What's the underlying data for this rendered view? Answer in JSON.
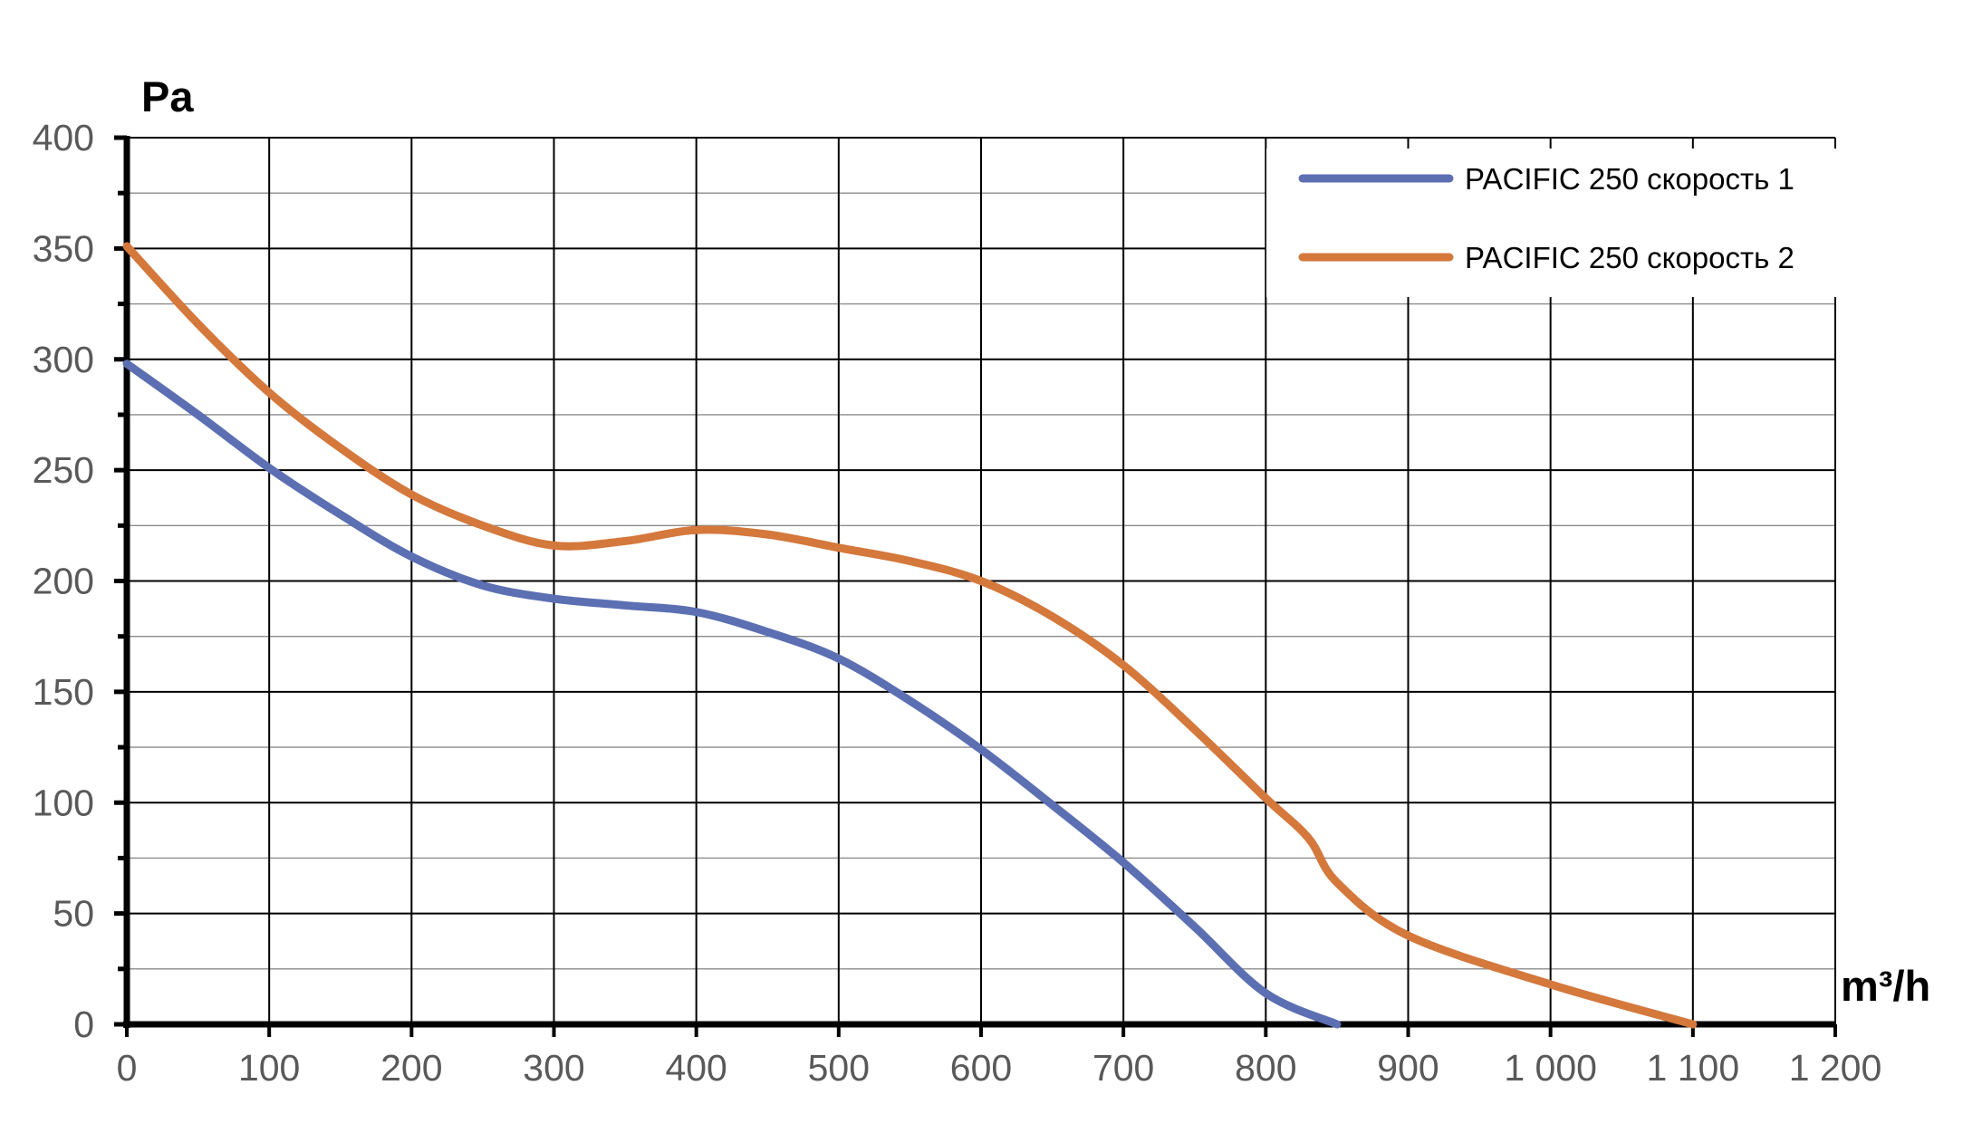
{
  "chart_data": {
    "type": "line",
    "title": "",
    "xlabel": "m³/h",
    "ylabel": "Pa",
    "xlim": [
      0,
      1200
    ],
    "ylim": [
      0,
      400
    ],
    "x_ticks": [
      0,
      100,
      200,
      300,
      400,
      500,
      600,
      700,
      800,
      900,
      1000,
      1100,
      1200
    ],
    "x_tick_labels": [
      "0",
      "100",
      "200",
      "300",
      "400",
      "500",
      "600",
      "700",
      "800",
      "900",
      "1 000",
      "1 100",
      "1 200"
    ],
    "y_ticks": [
      0,
      50,
      100,
      150,
      200,
      250,
      300,
      350,
      400
    ],
    "y_tick_labels": [
      "0",
      "50",
      "100",
      "150",
      "200",
      "250",
      "300",
      "350",
      "400"
    ],
    "grid": true,
    "legend_position": "top-right",
    "series": [
      {
        "name": "PACIFIC  250 скорость  1",
        "color": "#5b6fb2",
        "points": [
          [
            0,
            298
          ],
          [
            50,
            275
          ],
          [
            100,
            251
          ],
          [
            150,
            230
          ],
          [
            200,
            211
          ],
          [
            250,
            198
          ],
          [
            300,
            192
          ],
          [
            350,
            189
          ],
          [
            400,
            186
          ],
          [
            450,
            177
          ],
          [
            500,
            165
          ],
          [
            550,
            146
          ],
          [
            600,
            124
          ],
          [
            650,
            99
          ],
          [
            700,
            73
          ],
          [
            750,
            44
          ],
          [
            800,
            14
          ],
          [
            850,
            0
          ]
        ]
      },
      {
        "name": "PACIFIC  250 скорость  2",
        "color": "#d4783c",
        "points": [
          [
            0,
            351
          ],
          [
            50,
            316
          ],
          [
            100,
            285
          ],
          [
            150,
            260
          ],
          [
            200,
            239
          ],
          [
            250,
            225
          ],
          [
            300,
            216
          ],
          [
            350,
            218
          ],
          [
            400,
            223
          ],
          [
            450,
            221
          ],
          [
            500,
            215
          ],
          [
            550,
            209
          ],
          [
            600,
            200
          ],
          [
            650,
            184
          ],
          [
            700,
            162
          ],
          [
            750,
            133
          ],
          [
            800,
            102
          ],
          [
            830,
            84
          ],
          [
            850,
            64
          ],
          [
            900,
            40
          ],
          [
            1000,
            18
          ],
          [
            1100,
            0
          ]
        ]
      }
    ]
  }
}
